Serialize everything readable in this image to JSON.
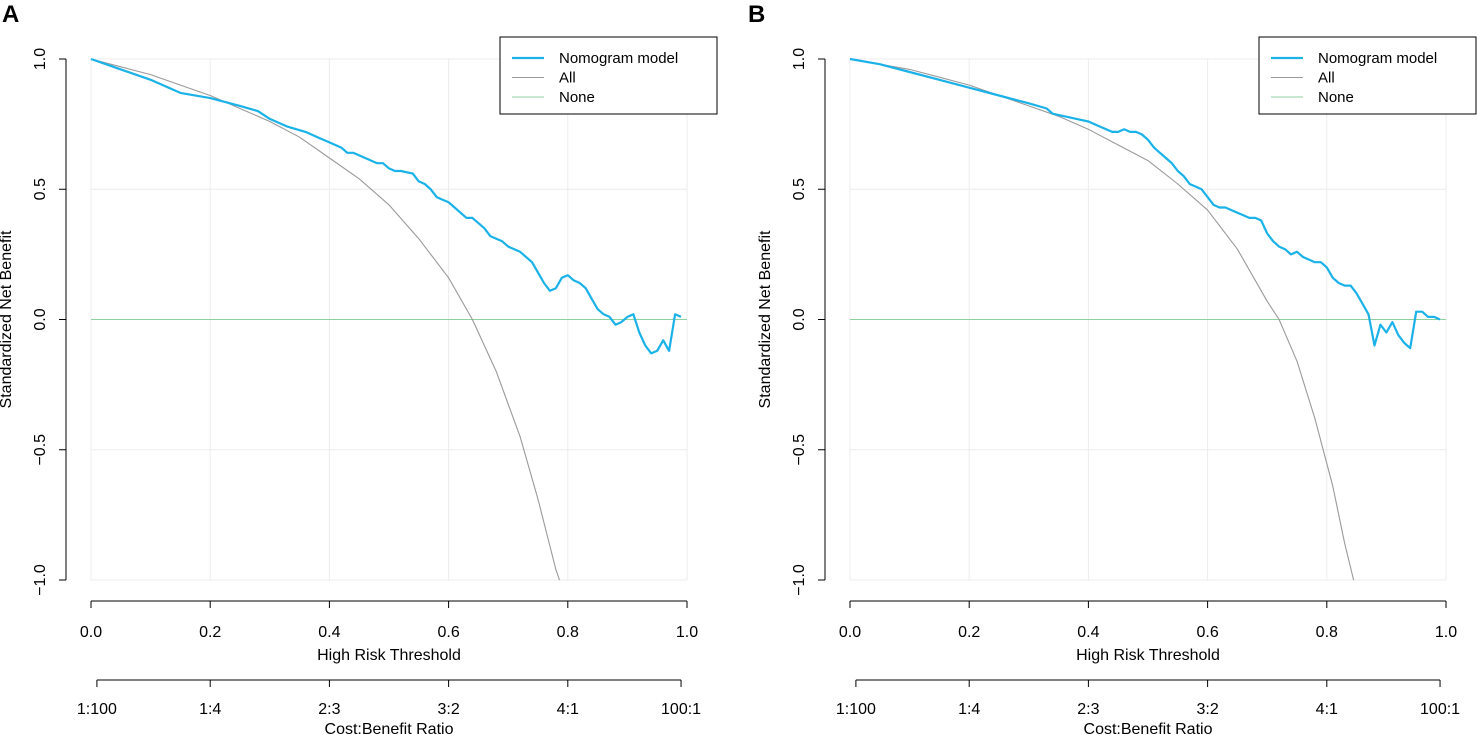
{
  "colors": {
    "model": "#1ab2e8",
    "all": "#9a9a9a",
    "none": "#8fd19e",
    "grid": "#ececec",
    "axis": "#000000"
  },
  "chart_data": [
    {
      "panel": "A",
      "type": "line",
      "ylabel": "Standardized Net Benefit",
      "xlabel": "High Risk Threshold",
      "x2label": "Cost:Benefit Ratio",
      "xlim": [
        0,
        1
      ],
      "ylim": [
        -1,
        1
      ],
      "xticks": [
        "0.0",
        "0.2",
        "0.4",
        "0.6",
        "0.8",
        "1.0"
      ],
      "yticks": [
        "-1.0",
        "-0.5",
        "0.0",
        "0.5",
        "1.0"
      ],
      "cb_ticks": [
        "1:100",
        "1:4",
        "2:3",
        "3:2",
        "4:1",
        "100:1"
      ],
      "legend": [
        "Nomogram model",
        "All",
        "None"
      ],
      "prevalence": 0.64,
      "series": [
        {
          "name": "Nomogram model",
          "x": [
            0.0,
            0.05,
            0.1,
            0.15,
            0.2,
            0.25,
            0.28,
            0.3,
            0.33,
            0.36,
            0.38,
            0.4,
            0.42,
            0.43,
            0.44,
            0.46,
            0.48,
            0.49,
            0.5,
            0.51,
            0.52,
            0.54,
            0.55,
            0.56,
            0.57,
            0.58,
            0.59,
            0.6,
            0.61,
            0.62,
            0.63,
            0.64,
            0.65,
            0.66,
            0.67,
            0.68,
            0.69,
            0.7,
            0.72,
            0.74,
            0.75,
            0.76,
            0.77,
            0.78,
            0.79,
            0.8,
            0.81,
            0.82,
            0.83,
            0.84,
            0.85,
            0.86,
            0.87,
            0.88,
            0.89,
            0.9,
            0.91,
            0.92,
            0.93,
            0.94,
            0.95,
            0.96,
            0.97,
            0.98,
            0.99
          ],
          "y": [
            1.0,
            0.96,
            0.92,
            0.87,
            0.85,
            0.82,
            0.8,
            0.77,
            0.74,
            0.72,
            0.7,
            0.68,
            0.66,
            0.64,
            0.64,
            0.62,
            0.6,
            0.6,
            0.58,
            0.57,
            0.57,
            0.56,
            0.53,
            0.52,
            0.5,
            0.47,
            0.46,
            0.45,
            0.43,
            0.41,
            0.39,
            0.39,
            0.37,
            0.35,
            0.32,
            0.31,
            0.3,
            0.28,
            0.26,
            0.22,
            0.18,
            0.14,
            0.11,
            0.12,
            0.16,
            0.17,
            0.15,
            0.14,
            0.12,
            0.08,
            0.04,
            0.02,
            0.01,
            -0.02,
            -0.01,
            0.01,
            0.02,
            -0.05,
            -0.1,
            -0.13,
            -0.12,
            -0.08,
            -0.12,
            0.02,
            0.01
          ]
        },
        {
          "name": "All",
          "x": [
            0.0,
            0.05,
            0.1,
            0.15,
            0.2,
            0.25,
            0.3,
            0.35,
            0.4,
            0.45,
            0.5,
            0.55,
            0.6,
            0.64,
            0.68,
            0.72,
            0.75,
            0.78,
            0.786
          ],
          "y": [
            1.0,
            0.97,
            0.94,
            0.9,
            0.86,
            0.81,
            0.76,
            0.7,
            0.62,
            0.54,
            0.44,
            0.31,
            0.16,
            0.0,
            -0.2,
            -0.45,
            -0.69,
            -0.96,
            -1.0
          ]
        },
        {
          "name": "None",
          "x": [
            0.0,
            1.0
          ],
          "y": [
            0.0,
            0.0
          ]
        }
      ]
    },
    {
      "panel": "B",
      "type": "line",
      "ylabel": "Standardized Net Benefit",
      "xlabel": "High Risk Threshold",
      "x2label": "Cost:Benefit Ratio",
      "xlim": [
        0,
        1
      ],
      "ylim": [
        -1,
        1
      ],
      "xticks": [
        "0.0",
        "0.2",
        "0.4",
        "0.6",
        "0.8",
        "1.0"
      ],
      "yticks": [
        "-1.0",
        "-0.5",
        "0.0",
        "0.5",
        "1.0"
      ],
      "cb_ticks": [
        "1:100",
        "1:4",
        "2:3",
        "3:2",
        "4:1",
        "100:1"
      ],
      "legend": [
        "Nomogram model",
        "All",
        "None"
      ],
      "prevalence": 0.72,
      "series": [
        {
          "name": "Nomogram model",
          "x": [
            0.0,
            0.05,
            0.1,
            0.15,
            0.2,
            0.25,
            0.3,
            0.33,
            0.34,
            0.36,
            0.38,
            0.4,
            0.42,
            0.44,
            0.45,
            0.46,
            0.47,
            0.48,
            0.49,
            0.5,
            0.51,
            0.52,
            0.53,
            0.54,
            0.55,
            0.56,
            0.57,
            0.58,
            0.59,
            0.6,
            0.61,
            0.62,
            0.63,
            0.64,
            0.65,
            0.66,
            0.67,
            0.68,
            0.69,
            0.7,
            0.71,
            0.72,
            0.73,
            0.74,
            0.75,
            0.76,
            0.77,
            0.78,
            0.79,
            0.8,
            0.81,
            0.82,
            0.83,
            0.84,
            0.85,
            0.86,
            0.87,
            0.88,
            0.89,
            0.9,
            0.91,
            0.92,
            0.93,
            0.94,
            0.95,
            0.96,
            0.97,
            0.98,
            0.99
          ],
          "y": [
            1.0,
            0.98,
            0.95,
            0.92,
            0.89,
            0.86,
            0.83,
            0.81,
            0.79,
            0.78,
            0.77,
            0.76,
            0.74,
            0.72,
            0.72,
            0.73,
            0.72,
            0.72,
            0.71,
            0.69,
            0.66,
            0.64,
            0.62,
            0.6,
            0.57,
            0.55,
            0.52,
            0.51,
            0.5,
            0.47,
            0.44,
            0.43,
            0.43,
            0.42,
            0.41,
            0.4,
            0.39,
            0.39,
            0.38,
            0.33,
            0.3,
            0.28,
            0.27,
            0.25,
            0.26,
            0.24,
            0.23,
            0.22,
            0.22,
            0.2,
            0.16,
            0.14,
            0.13,
            0.13,
            0.1,
            0.06,
            0.02,
            -0.1,
            -0.02,
            -0.05,
            -0.01,
            -0.06,
            -0.09,
            -0.11,
            0.03,
            0.03,
            0.01,
            0.01,
            0.0
          ]
        },
        {
          "name": "All",
          "x": [
            0.0,
            0.05,
            0.1,
            0.15,
            0.2,
            0.25,
            0.3,
            0.35,
            0.4,
            0.45,
            0.5,
            0.55,
            0.6,
            0.65,
            0.7,
            0.72,
            0.75,
            0.78,
            0.81,
            0.83,
            0.845
          ],
          "y": [
            1.0,
            0.98,
            0.96,
            0.93,
            0.9,
            0.86,
            0.82,
            0.78,
            0.73,
            0.67,
            0.61,
            0.52,
            0.42,
            0.27,
            0.07,
            0.0,
            -0.16,
            -0.38,
            -0.64,
            -0.86,
            -1.0
          ]
        },
        {
          "name": "None",
          "x": [
            0.0,
            1.0
          ],
          "y": [
            0.0,
            0.0
          ]
        }
      ]
    }
  ]
}
